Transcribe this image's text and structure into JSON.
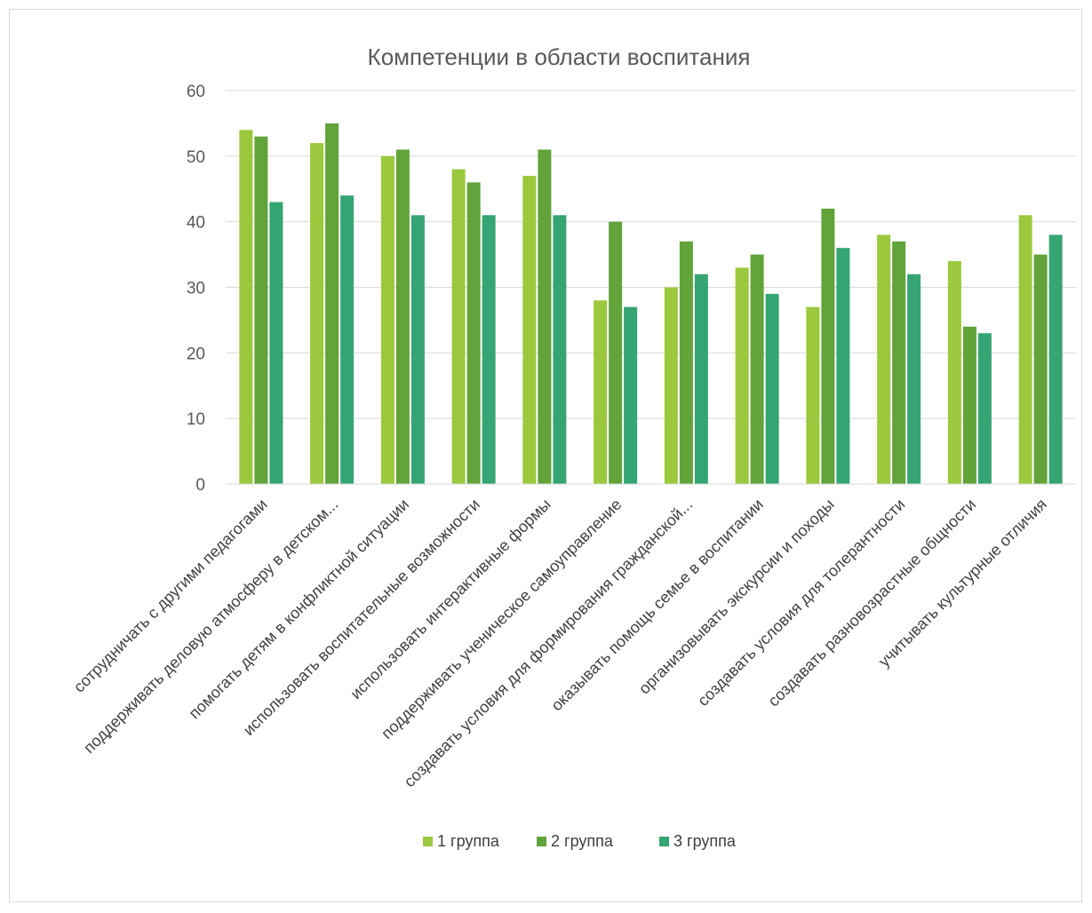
{
  "chart_data": {
    "type": "bar",
    "title": "Компетенции в области воспитания",
    "xlabel": "",
    "ylabel": "",
    "ylim": [
      0,
      60
    ],
    "yticks": [
      0,
      10,
      20,
      30,
      40,
      50,
      60
    ],
    "grid": true,
    "legend_position": "bottom",
    "categories": [
      "сотрудничать с другими педагогами",
      "поддерживать деловую атмосферу в детском...",
      "помогать детям в конфликтной ситуации",
      "использовать воспитательные возможности",
      "использовать интерактивные формы",
      "поддерживать ученическое самоуправление",
      "создавать условия для формирования гражданской...",
      "оказывать помощь семье в воспитании",
      "организовывать экскурсии и походы",
      "создавать условия для толерантности",
      "создавать разновозрастные общности",
      "учитывать культурные отличия"
    ],
    "series": [
      {
        "name": "1 группа",
        "color": "#9bc83c",
        "values": [
          54,
          52,
          50,
          48,
          47,
          28,
          30,
          33,
          27,
          38,
          34,
          41
        ]
      },
      {
        "name": "2 группа",
        "color": "#62a33a",
        "values": [
          53,
          55,
          51,
          46,
          51,
          40,
          37,
          35,
          42,
          37,
          24,
          35
        ]
      },
      {
        "name": "3 группа",
        "color": "#35a573",
        "values": [
          43,
          44,
          41,
          41,
          41,
          27,
          32,
          29,
          36,
          32,
          23,
          38
        ]
      }
    ]
  }
}
